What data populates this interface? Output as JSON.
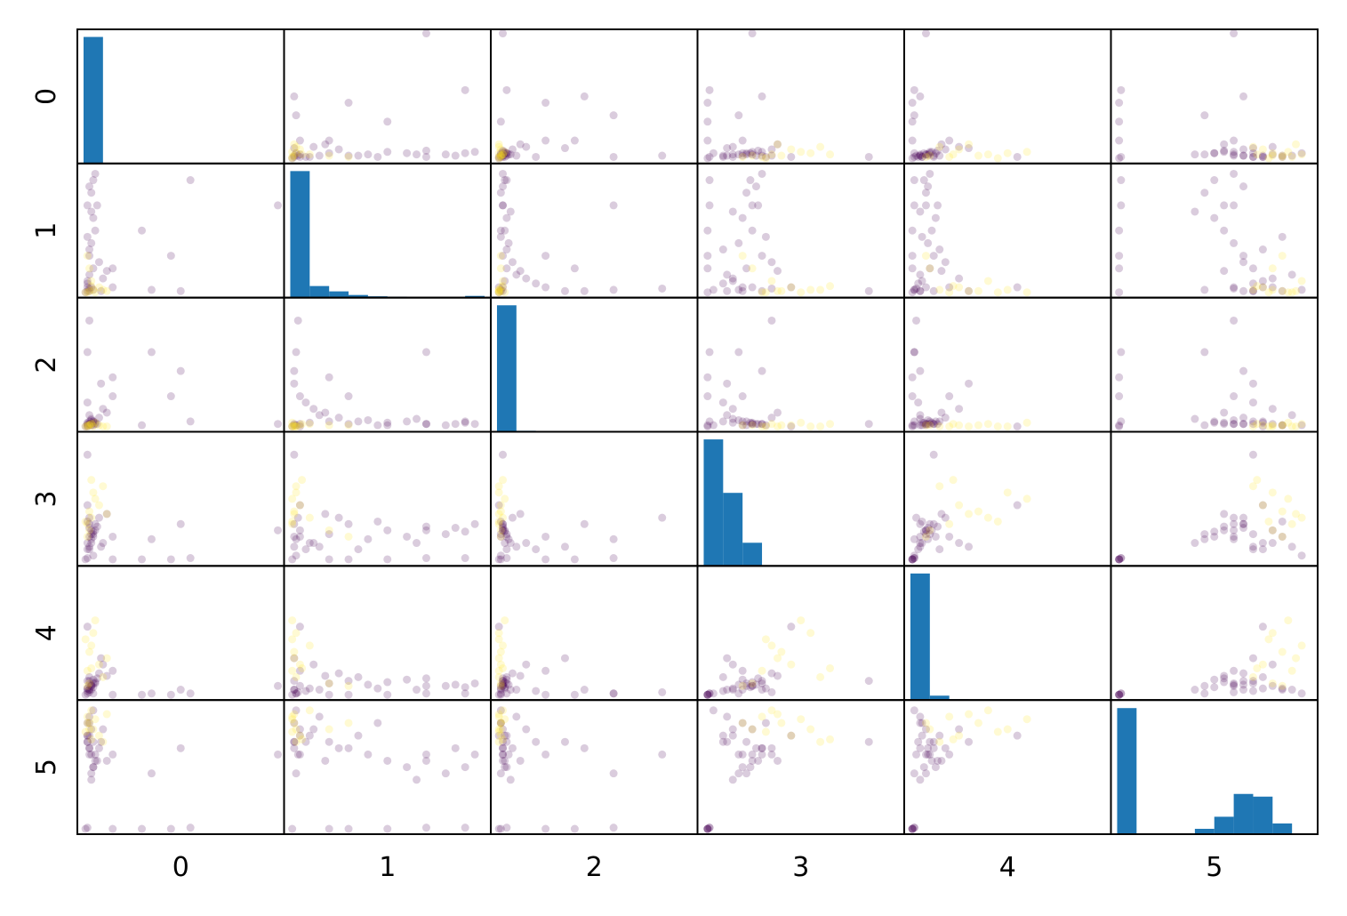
{
  "chart_data": {
    "type": "scatter_matrix",
    "variables": [
      {
        "name": "0",
        "lim": [
          0,
          1
        ],
        "values": [
          0.03,
          0.04,
          0.02,
          0.05,
          0.03,
          0.04,
          0.06,
          0.05,
          0.07,
          0.04,
          0.05,
          0.06,
          0.03,
          0.02,
          0.08,
          0.1,
          0.03,
          0.15,
          0.02,
          0.04,
          0.09,
          0.03,
          0.05,
          0.12,
          1.0,
          0.5,
          0.35,
          0.03,
          0.02,
          0.02,
          0.01,
          0.3,
          0.55,
          0.15,
          0.02,
          0.45,
          0.02,
          0.03,
          0.05,
          0.08,
          0.04,
          0.1,
          0.03,
          0.06,
          0.12,
          0.02,
          0.01,
          0.04
        ]
      },
      {
        "name": "1",
        "lim": [
          0,
          1
        ],
        "values": [
          0.02,
          0.05,
          0.1,
          0.2,
          0.3,
          0.4,
          0.5,
          0.6,
          0.7,
          0.8,
          0.9,
          0.95,
          0.15,
          0.08,
          0.25,
          0.12,
          0.35,
          0.05,
          0.45,
          0.65,
          0.02,
          0.85,
          0.03,
          0.18,
          0.7,
          0.02,
          0.03,
          0.04,
          0.02,
          0.05,
          0.01,
          0.5,
          0.9,
          0.2,
          0.7,
          0.3,
          0.01,
          0.02,
          0.03,
          0.05,
          0.1,
          0.03,
          0.2,
          0.01,
          0.02,
          0.3,
          0.01,
          0.06
        ]
      },
      {
        "name": "2",
        "lim": [
          0,
          1
        ],
        "values": [
          0.02,
          0.03,
          0.04,
          0.05,
          0.03,
          0.06,
          0.04,
          0.05,
          0.03,
          0.02,
          0.04,
          0.03,
          0.1,
          0.2,
          0.08,
          0.15,
          0.05,
          0.25,
          0.02,
          0.07,
          0.35,
          0.03,
          0.02,
          0.12,
          0.03,
          0.45,
          0.6,
          0.85,
          0.03,
          0.01,
          0.01,
          0.02,
          0.05,
          0.4,
          0.6,
          0.25,
          0.01,
          0.02,
          0.01,
          0.02,
          0.03,
          0.01,
          0.02,
          0.04,
          0.01,
          0.02,
          0.01,
          0.03
        ]
      },
      {
        "name": "3",
        "lim": [
          0,
          1
        ],
        "values": [
          0.2,
          0.25,
          0.15,
          0.22,
          0.3,
          0.18,
          0.25,
          0.2,
          0.28,
          0.22,
          0.24,
          0.3,
          0.12,
          0.1,
          0.35,
          0.15,
          0.1,
          0.2,
          0.32,
          0.15,
          0.12,
          0.27,
          0.05,
          0.38,
          0.25,
          0.3,
          0.18,
          0.35,
          0.85,
          0.45,
          0.02,
          0.02,
          0.03,
          0.02,
          0.03,
          0.02,
          0.3,
          0.4,
          0.55,
          0.45,
          0.35,
          0.6,
          0.25,
          0.5,
          0.38,
          0.2,
          0.32,
          0.65
        ]
      },
      {
        "name": "4",
        "lim": [
          0,
          1
        ],
        "values": [
          0.05,
          0.08,
          0.06,
          0.1,
          0.12,
          0.09,
          0.11,
          0.13,
          0.14,
          0.08,
          0.07,
          0.1,
          0.05,
          0.04,
          0.18,
          0.25,
          0.15,
          0.2,
          0.06,
          0.05,
          0.3,
          0.09,
          0.02,
          0.16,
          0.08,
          0.05,
          0.02,
          0.03,
          0.12,
          0.55,
          0.01,
          0.01,
          0.02,
          0.01,
          0.02,
          0.01,
          0.2,
          0.35,
          0.5,
          0.25,
          0.4,
          0.15,
          0.1,
          0.6,
          0.3,
          0.08,
          0.45,
          0.22
        ]
      },
      {
        "name": "5",
        "lim": [
          0,
          1
        ],
        "values": [
          0.85,
          0.8,
          0.75,
          0.7,
          0.65,
          0.6,
          0.55,
          0.5,
          0.55,
          0.45,
          0.5,
          0.6,
          0.9,
          0.7,
          0.65,
          0.8,
          0.75,
          0.6,
          0.85,
          0.4,
          0.7,
          0.65,
          0.95,
          0.55,
          0.6,
          0.65,
          0.45,
          0.6,
          0.7,
          0.75,
          0.01,
          0.01,
          0.02,
          0.01,
          0.02,
          0.01,
          0.9,
          0.85,
          0.8,
          0.75,
          0.95,
          0.7,
          0.8,
          0.88,
          0.92,
          0.85,
          0.78,
          0.72
        ]
      }
    ],
    "class": [
      0,
      0,
      0,
      0,
      0,
      0,
      0,
      0,
      0,
      0,
      0,
      0,
      0,
      0,
      0,
      0,
      0,
      0,
      0,
      0,
      0,
      0,
      0,
      0,
      0,
      0,
      0,
      0,
      0,
      0,
      0,
      0,
      0,
      0,
      0,
      0,
      1,
      1,
      1,
      1,
      1,
      1,
      1,
      1,
      1,
      1,
      1,
      1
    ],
    "colors": [
      "#440154",
      "#fde725"
    ],
    "hist_color": "#1f77b4",
    "histograms": [
      {
        "bins": [
          0,
          0.1,
          0.2,
          0.3,
          0.4,
          0.5,
          0.6,
          0.7,
          0.8,
          0.9,
          1.0
        ],
        "counts": [
          9500,
          0,
          0,
          0,
          0,
          0,
          0,
          0,
          0,
          0
        ],
        "ylim": [
          0,
          10070
        ]
      },
      {
        "bins": [
          0,
          0.1,
          0.2,
          0.3,
          0.4,
          0.5,
          0.6,
          0.7,
          0.8,
          0.9,
          1.0
        ],
        "counts": [
          9500,
          870,
          470,
          200,
          100,
          70,
          30,
          20,
          20,
          130
        ],
        "ylim": [
          0,
          10070
        ]
      },
      {
        "bins": [
          0,
          0.1,
          0.2,
          0.3,
          0.4,
          0.5,
          0.6,
          0.7,
          0.8,
          0.9,
          1.0
        ],
        "counts": [
          9900,
          80,
          10,
          5,
          3,
          0,
          2,
          1,
          2,
          1
        ],
        "ylim": [
          0,
          10500
        ]
      },
      {
        "bins": [
          0,
          0.1,
          0.2,
          0.3,
          0.4,
          0.5,
          0.6,
          0.7,
          0.8,
          0.9,
          1.0
        ],
        "counts": [
          5300,
          3060,
          970,
          15,
          5,
          3,
          1,
          0,
          0,
          1
        ],
        "ylim": [
          0,
          5620
        ]
      },
      {
        "bins": [
          0,
          0.1,
          0.2,
          0.3,
          0.4,
          0.5,
          0.6,
          0.7,
          0.8,
          0.9,
          1.0
        ],
        "counts": [
          9500,
          330,
          60,
          20,
          10,
          5,
          3,
          0,
          1,
          1
        ],
        "ylim": [
          0,
          10070
        ]
      },
      {
        "bins": [
          0,
          0.1,
          0.2,
          0.3,
          0.4,
          0.5,
          0.6,
          0.7,
          0.8,
          0.9,
          1.0
        ],
        "counts": [
          4700,
          0,
          0,
          0,
          200,
          650,
          1500,
          1400,
          400,
          0
        ],
        "ylim": [
          0,
          5000
        ]
      }
    ]
  }
}
